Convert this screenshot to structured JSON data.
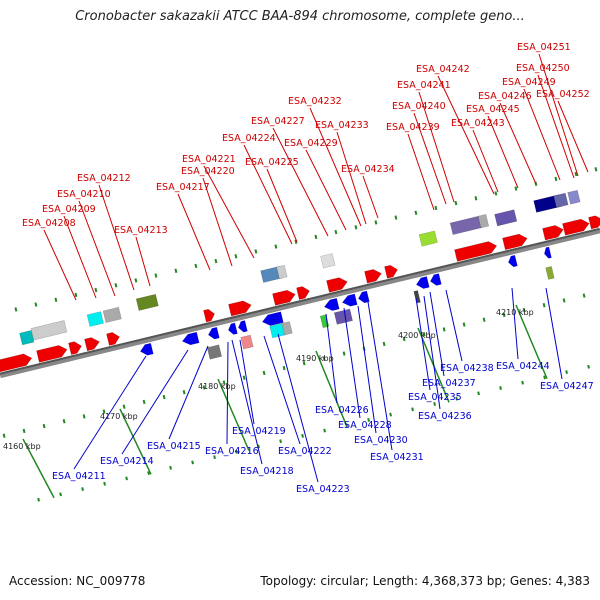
{
  "title": "Cronobacter sakazakii ATCC BAA-894 chromosome, complete geno...",
  "footer": {
    "accession": "Accession: NC_009778",
    "info": "Topology: circular; Length: 4,368,373 bp; Genes: 4,383"
  },
  "colors": {
    "top_label": "#cc0000",
    "bottom_label": "#0000cc",
    "forward_gene": "#ee0000",
    "reverse_gene": "#0000ee",
    "backbone": "#888888",
    "tick": "#228822"
  },
  "kbp_ticks": [
    {
      "label": "4160 kbp"
    },
    {
      "label": "4170 kbp"
    },
    {
      "label": "4180 kbp"
    },
    {
      "label": "4190 kbp"
    },
    {
      "label": "4200 kbp"
    },
    {
      "label": "4210 kbp"
    }
  ],
  "top_genes": [
    {
      "label": "ESA_04208"
    },
    {
      "label": "ESA_04209"
    },
    {
      "label": "ESA_04210"
    },
    {
      "label": "ESA_04212"
    },
    {
      "label": "ESA_04213"
    },
    {
      "label": "ESA_04217"
    },
    {
      "label": "ESA_04220"
    },
    {
      "label": "ESA_04221"
    },
    {
      "label": "ESA_04224"
    },
    {
      "label": "ESA_04225"
    },
    {
      "label": "ESA_04227"
    },
    {
      "label": "ESA_04229"
    },
    {
      "label": "ESA_04232"
    },
    {
      "label": "ESA_04233"
    },
    {
      "label": "ESA_04234"
    },
    {
      "label": "ESA_04239"
    },
    {
      "label": "ESA_04240"
    },
    {
      "label": "ESA_04241"
    },
    {
      "label": "ESA_04242"
    },
    {
      "label": "ESA_04243"
    },
    {
      "label": "ESA_04245"
    },
    {
      "label": "ESA_04246"
    },
    {
      "label": "ESA_04249"
    },
    {
      "label": "ESA_04250"
    },
    {
      "label": "ESA_04251"
    },
    {
      "label": "ESA_04252"
    }
  ],
  "bottom_genes": [
    {
      "label": "ESA_04211"
    },
    {
      "label": "ESA_04214"
    },
    {
      "label": "ESA_04215"
    },
    {
      "label": "ESA_04216"
    },
    {
      "label": "ESA_04218"
    },
    {
      "label": "ESA_04219"
    },
    {
      "label": "ESA_04222"
    },
    {
      "label": "ESA_04223"
    },
    {
      "label": "ESA_04226"
    },
    {
      "label": "ESA_04228"
    },
    {
      "label": "ESA_04230"
    },
    {
      "label": "ESA_04231"
    },
    {
      "label": "ESA_04235"
    },
    {
      "label": "ESA_04236"
    },
    {
      "label": "ESA_04237"
    },
    {
      "label": "ESA_04238"
    },
    {
      "label": "ESA_04244"
    },
    {
      "label": "ESA_04247"
    }
  ]
}
